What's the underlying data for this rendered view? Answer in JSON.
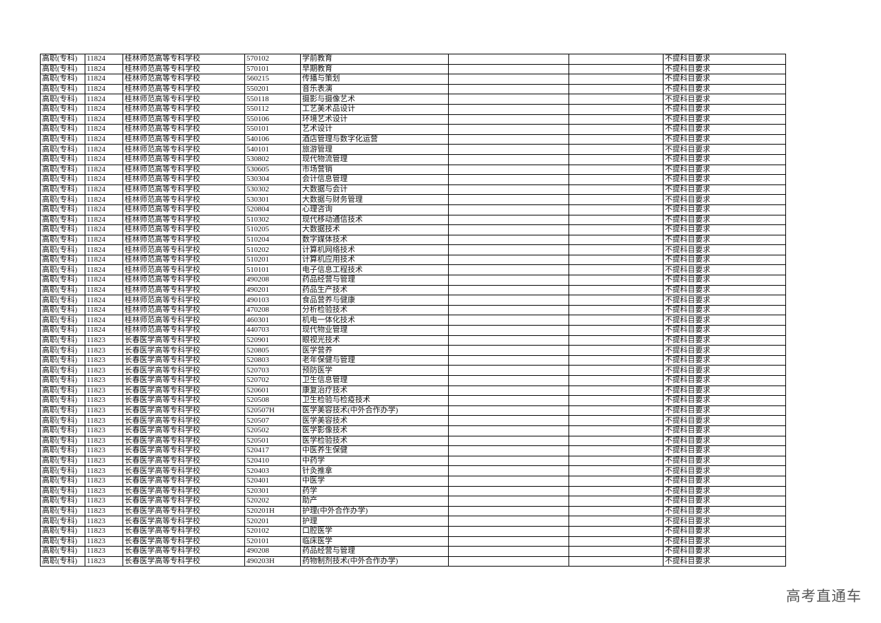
{
  "watermark": "高考直通车",
  "level": "高职(专科)",
  "requirement": "不提科目要求",
  "groups": [
    {
      "code": "11824",
      "school": "桂林师范高等专科学校",
      "majors": [
        [
          "570102",
          "学前教育"
        ],
        [
          "570101",
          "早期教育"
        ],
        [
          "560215",
          "传播与策划"
        ],
        [
          "550201",
          "音乐表演"
        ],
        [
          "550118",
          "摄影与摄像艺术"
        ],
        [
          "550112",
          "工艺美术品设计"
        ],
        [
          "550106",
          "环境艺术设计"
        ],
        [
          "550101",
          "艺术设计"
        ],
        [
          "540106",
          "酒店管理与数字化运营"
        ],
        [
          "540101",
          "旅游管理"
        ],
        [
          "530802",
          "现代物流管理"
        ],
        [
          "530605",
          "市场营销"
        ],
        [
          "530304",
          "会计信息管理"
        ],
        [
          "530302",
          "大数据与会计"
        ],
        [
          "530301",
          "大数据与财务管理"
        ],
        [
          "520804",
          "心理咨询"
        ],
        [
          "510302",
          "现代移动通信技术"
        ],
        [
          "510205",
          "大数据技术"
        ],
        [
          "510204",
          "数字媒体技术"
        ],
        [
          "510202",
          "计算机网络技术"
        ],
        [
          "510201",
          "计算机应用技术"
        ],
        [
          "510101",
          "电子信息工程技术"
        ],
        [
          "490208",
          "药品经营与管理"
        ],
        [
          "490201",
          "药品生产技术"
        ],
        [
          "490103",
          "食品营养与健康"
        ],
        [
          "470208",
          "分析检验技术"
        ],
        [
          "460301",
          "机电一体化技术"
        ],
        [
          "440703",
          "现代物业管理"
        ]
      ]
    },
    {
      "code": "11823",
      "school": "长春医学高等专科学校",
      "majors": [
        [
          "520901",
          "眼视光技术"
        ],
        [
          "520805",
          "医学营养"
        ],
        [
          "520803",
          "老年保健与管理"
        ],
        [
          "520703",
          "预防医学"
        ],
        [
          "520702",
          "卫生信息管理"
        ],
        [
          "520601",
          "康复治疗技术"
        ],
        [
          "520508",
          "卫生检验与检疫技术"
        ],
        [
          "520507H",
          "医学美容技术(中外合作办学)"
        ],
        [
          "520507",
          "医学美容技术"
        ],
        [
          "520502",
          "医学影像技术"
        ],
        [
          "520501",
          "医学检验技术"
        ],
        [
          "520417",
          "中医养生保健"
        ],
        [
          "520410",
          "中药学"
        ],
        [
          "520403",
          "针灸推拿"
        ],
        [
          "520401",
          "中医学"
        ],
        [
          "520301",
          "药学"
        ],
        [
          "520202",
          "助产"
        ],
        [
          "520201H",
          "护理(中外合作办学)"
        ],
        [
          "520201",
          "护理"
        ],
        [
          "520102",
          "口腔医学"
        ],
        [
          "520101",
          "临床医学"
        ],
        [
          "490208",
          "药品经营与管理"
        ],
        [
          "490203H",
          "药物制剂技术(中外合作办学)"
        ]
      ]
    }
  ]
}
